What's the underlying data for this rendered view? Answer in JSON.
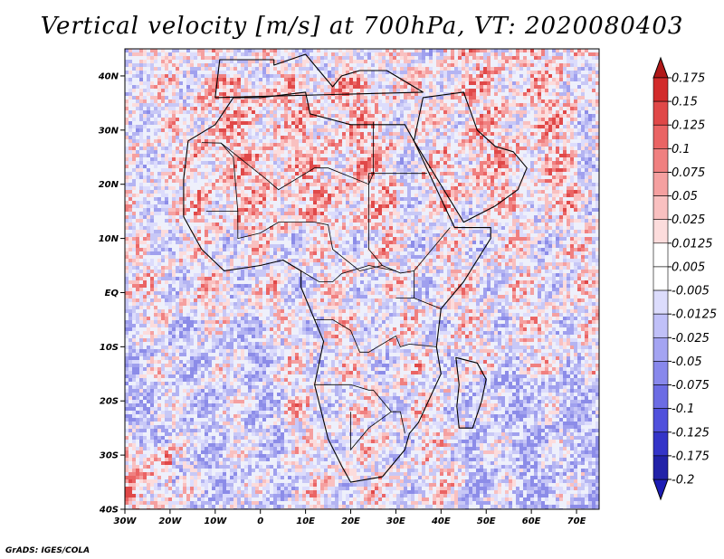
{
  "title": "Vertical velocity [m/s] at 700hPa, VT: 2020080403",
  "credit": "GrADS: IGES/COLA",
  "map": {
    "lon_range": [
      -30,
      75
    ],
    "lat_range": [
      -40,
      45
    ],
    "lon_ticks": [
      {
        "value": -30,
        "label": "30W"
      },
      {
        "value": -20,
        "label": "20W"
      },
      {
        "value": -10,
        "label": "10W"
      },
      {
        "value": 0,
        "label": "0"
      },
      {
        "value": 10,
        "label": "10E"
      },
      {
        "value": 20,
        "label": "20E"
      },
      {
        "value": 30,
        "label": "30E"
      },
      {
        "value": 40,
        "label": "40E"
      },
      {
        "value": 50,
        "label": "50E"
      },
      {
        "value": 60,
        "label": "60E"
      },
      {
        "value": 70,
        "label": "70E"
      }
    ],
    "lat_ticks": [
      {
        "value": 40,
        "label": "40N"
      },
      {
        "value": 30,
        "label": "30N"
      },
      {
        "value": 20,
        "label": "20N"
      },
      {
        "value": 10,
        "label": "10N"
      },
      {
        "value": 0,
        "label": "EQ"
      },
      {
        "value": -10,
        "label": "10S"
      },
      {
        "value": -20,
        "label": "20S"
      },
      {
        "value": -30,
        "label": "30S"
      },
      {
        "value": -40,
        "label": "40S"
      }
    ]
  },
  "colorbar": {
    "levels": [
      {
        "label": "0.175",
        "color": "#b81c1c"
      },
      {
        "label": "0.15",
        "color": "#d22b2b"
      },
      {
        "label": "0.125",
        "color": "#e04848"
      },
      {
        "label": "0.1",
        "color": "#ea6464"
      },
      {
        "label": "0.075",
        "color": "#f08080"
      },
      {
        "label": "0.05",
        "color": "#f5a0a0"
      },
      {
        "label": "0.025",
        "color": "#f9c0c0"
      },
      {
        "label": "0.0125",
        "color": "#fcdcdc"
      },
      {
        "label": "0.005",
        "color": "#ffffff"
      },
      {
        "label": "-0.005",
        "color": "#ffffff"
      },
      {
        "label": "-0.0125",
        "color": "#dcdcfc"
      },
      {
        "label": "-0.025",
        "color": "#c0c0f8"
      },
      {
        "label": "-0.05",
        "color": "#a4a4f2"
      },
      {
        "label": "-0.075",
        "color": "#8888ec"
      },
      {
        "label": "-0.1",
        "color": "#6c6ce4"
      },
      {
        "label": "-0.125",
        "color": "#5050dc"
      },
      {
        "label": "-0.175",
        "color": "#3434c8"
      },
      {
        "label": "-0.2",
        "color": "#2222a8"
      }
    ],
    "top_color": "#b01818",
    "bottom_color": "#1c1cb4"
  }
}
